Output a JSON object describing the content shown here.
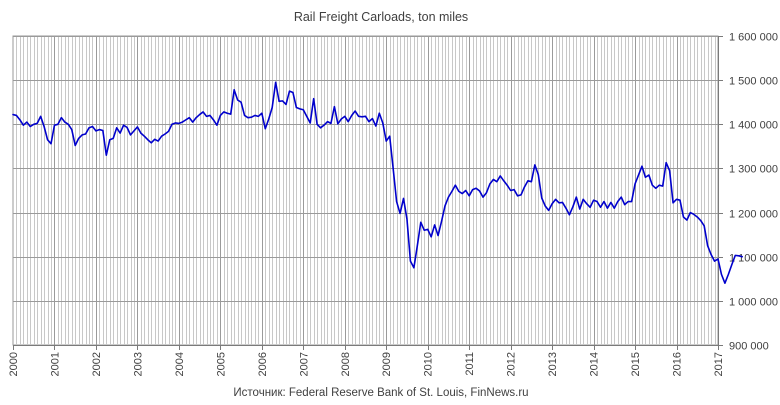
{
  "chart_data": {
    "type": "line",
    "title": "Rail Freight Carloads, ton miles",
    "source": "Источник: Federal Reserve Bank of St. Louis, FinNews.ru",
    "xlabel": "",
    "ylabel": "",
    "x_start": "2000-01",
    "x_frequency": "monthly",
    "xlim": [
      "2000-01",
      "2017-01"
    ],
    "ylim": [
      900000,
      1600000
    ],
    "y_ticks": [
      900000,
      1000000,
      1100000,
      1200000,
      1300000,
      1400000,
      1500000,
      1600000
    ],
    "y_tick_labels": [
      "900 000",
      "1 000 000",
      "1 100 000",
      "1 200 000",
      "1 300 000",
      "1 400 000",
      "1 500 000",
      "1 600 000"
    ],
    "x_tick_labels": [
      "2000",
      "2001",
      "2002",
      "2003",
      "2004",
      "2005",
      "2006",
      "2007",
      "2008",
      "2009",
      "2010",
      "2011",
      "2012",
      "2013",
      "2014",
      "2015",
      "2016",
      "2017"
    ],
    "y_axis_position": "right",
    "grid": true,
    "line_color": "#0000cc",
    "series": [
      {
        "values": [
          1422000,
          1420000,
          1410000,
          1398000,
          1405000,
          1395000,
          1400000,
          1402000,
          1418000,
          1395000,
          1365000,
          1356000,
          1398000,
          1400000,
          1415000,
          1405000,
          1400000,
          1388000,
          1352000,
          1368000,
          1376000,
          1378000,
          1392000,
          1395000,
          1385000,
          1388000,
          1386000,
          1330000,
          1365000,
          1368000,
          1392000,
          1380000,
          1398000,
          1393000,
          1376000,
          1385000,
          1394000,
          1380000,
          1373000,
          1365000,
          1358000,
          1366000,
          1362000,
          1373000,
          1378000,
          1384000,
          1400000,
          1403000,
          1402000,
          1405000,
          1410000,
          1415000,
          1405000,
          1415000,
          1422000,
          1428000,
          1418000,
          1420000,
          1410000,
          1398000,
          1420000,
          1428000,
          1425000,
          1423000,
          1478000,
          1455000,
          1450000,
          1420000,
          1415000,
          1416000,
          1420000,
          1418000,
          1425000,
          1390000,
          1412000,
          1438000,
          1495000,
          1452000,
          1453000,
          1445000,
          1475000,
          1472000,
          1438000,
          1435000,
          1433000,
          1418000,
          1403000,
          1458000,
          1400000,
          1392000,
          1398000,
          1406000,
          1402000,
          1440000,
          1401000,
          1412000,
          1418000,
          1406000,
          1420000,
          1430000,
          1418000,
          1417000,
          1418000,
          1406000,
          1413000,
          1396000,
          1425000,
          1403000,
          1362000,
          1373000,
          1300000,
          1225000,
          1198000,
          1232000,
          1185000,
          1090000,
          1075000,
          1125000,
          1178000,
          1160000,
          1162000,
          1145000,
          1172000,
          1148000,
          1180000,
          1215000,
          1235000,
          1248000,
          1262000,
          1248000,
          1243000,
          1250000,
          1238000,
          1252000,
          1255000,
          1249000,
          1235000,
          1245000,
          1265000,
          1275000,
          1270000,
          1283000,
          1272000,
          1262000,
          1250000,
          1252000,
          1238000,
          1240000,
          1258000,
          1272000,
          1270000,
          1308000,
          1286000,
          1233000,
          1215000,
          1205000,
          1220000,
          1230000,
          1222000,
          1223000,
          1210000,
          1195000,
          1213000,
          1235000,
          1208000,
          1230000,
          1220000,
          1212000,
          1228000,
          1225000,
          1212000,
          1225000,
          1210000,
          1223000,
          1210000,
          1225000,
          1235000,
          1218000,
          1225000,
          1225000,
          1265000,
          1285000,
          1305000,
          1280000,
          1285000,
          1262000,
          1255000,
          1262000,
          1260000,
          1313000,
          1295000,
          1222000,
          1230000,
          1228000,
          1190000,
          1183000,
          1200000,
          1196000,
          1190000,
          1182000,
          1170000,
          1125000,
          1105000,
          1090000,
          1095000,
          1060000,
          1040000,
          1060000,
          1082000,
          1103000,
          1102000,
          1100000
        ]
      }
    ]
  }
}
